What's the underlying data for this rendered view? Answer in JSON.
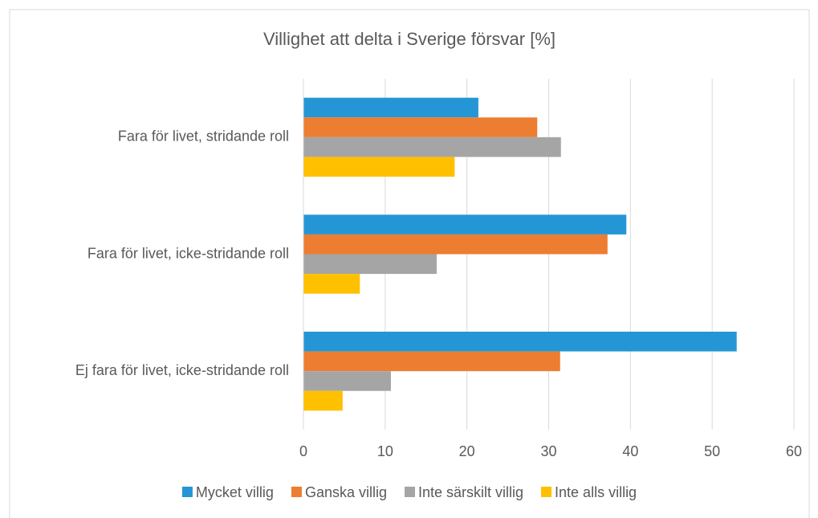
{
  "chart_data": {
    "type": "bar",
    "orientation": "horizontal",
    "title": "Villighet att delta i Sverige försvar [%]",
    "categories": [
      "Fara för livet, stridande roll",
      "Fara för livet, icke-stridande roll",
      "Ej fara för livet, icke-stridande roll"
    ],
    "series": [
      {
        "name": "Mycket villig",
        "color": "#2596d5",
        "values": [
          21.4,
          39.5,
          53.0
        ]
      },
      {
        "name": "Ganska villig",
        "color": "#ed7d31",
        "values": [
          28.6,
          37.2,
          31.4
        ]
      },
      {
        "name": "Inte särskilt villig",
        "color": "#a5a5a5",
        "values": [
          31.5,
          16.3,
          10.7
        ]
      },
      {
        "name": "Inte alls villig",
        "color": "#ffc000",
        "values": [
          18.5,
          6.9,
          4.8
        ]
      }
    ],
    "xlim": [
      0,
      60
    ],
    "xticks": [
      0,
      10,
      20,
      30,
      40,
      50,
      60
    ],
    "grid": true,
    "legend": "bottom"
  }
}
